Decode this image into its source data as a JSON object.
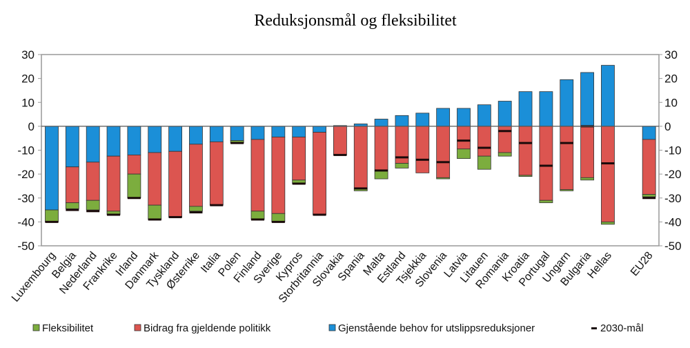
{
  "chart_data": {
    "type": "bar",
    "stacked": true,
    "title": "Reduksjonsmål og fleksibilitet",
    "ylim": [
      -50,
      30
    ],
    "yticks": [
      30,
      20,
      10,
      0,
      -10,
      -20,
      -30,
      -40,
      -50
    ],
    "secondary_y_axis": true,
    "grid": false,
    "legend_position": "bottom",
    "colors": {
      "blue": "#1b8fd8",
      "red": "#dc5550",
      "green": "#7cad3e",
      "target": "#1a0a0a"
    },
    "legend": [
      "Fleksibilitet",
      "Bidrag fra gjeldende politikk",
      "Gjenstående behov for utslippsreduksjoner",
      "2030-mål"
    ],
    "categories": [
      "Luxembourg",
      "Belgia",
      "Nederland",
      "Frankrike",
      "Irland",
      "Danmark",
      "Tyskland",
      "Østerrike",
      "Italia",
      "Polen",
      "Finland",
      "Sverige",
      "Kypros",
      "Storbritannia",
      "Slovakia",
      "Spania",
      "Malta",
      "Estland",
      "Tsjekkia",
      "Slovenia",
      "Latvia",
      "Litauen",
      "Romania",
      "Kroatia",
      "Portugal",
      "Ungarn",
      "Bulgaria",
      "Hellas",
      "EU28"
    ],
    "series": [
      {
        "name": "Gjenstående behov for utslippsreduksjoner",
        "ends": [
          -35,
          -17,
          -15,
          -12.5,
          -12,
          -11,
          -10.5,
          -7.5,
          -6.5,
          -6,
          -5.5,
          -4.5,
          -4.5,
          -2.5,
          0.3,
          1,
          3,
          4.5,
          5.5,
          7.5,
          7.5,
          9,
          10.5,
          14.5,
          14.5,
          19.5,
          22.5,
          25.5,
          -5.5
        ]
      },
      {
        "name": "Bidrag fra gjeldende politikk",
        "ends": [
          -35,
          -32,
          -31,
          -35.5,
          -20,
          -33,
          -38,
          -33.5,
          -33,
          -6,
          -35.5,
          -36.5,
          -22.5,
          -37,
          -12,
          -26,
          -18.5,
          -15.5,
          -19.5,
          -21.5,
          -9.5,
          -12.5,
          -11,
          -20.5,
          -31,
          -26.5,
          -21.5,
          -40,
          -28.5
        ]
      },
      {
        "name": "Fleksibilitet",
        "ends": [
          -40,
          -34.5,
          -35,
          -37,
          -30,
          -39,
          -38,
          -35.5,
          -33,
          -7,
          -39,
          -40,
          -24,
          -37,
          -12,
          -27,
          -22,
          -17.5,
          -19.5,
          -22,
          -13.5,
          -18,
          -12.5,
          -21,
          -32,
          -27,
          -22.5,
          -41,
          -29.5
        ]
      },
      {
        "name": "2030-mål",
        "values": [
          -40,
          -35,
          -35.5,
          -37,
          -30,
          -39,
          -38,
          -36,
          -33,
          -7,
          -39,
          -40,
          -24,
          -37,
          -12,
          -26,
          -18.5,
          -13,
          -14,
          -15,
          -6,
          -9,
          -2,
          -7,
          -16.5,
          -7,
          0,
          -15.5,
          -30
        ]
      }
    ]
  }
}
